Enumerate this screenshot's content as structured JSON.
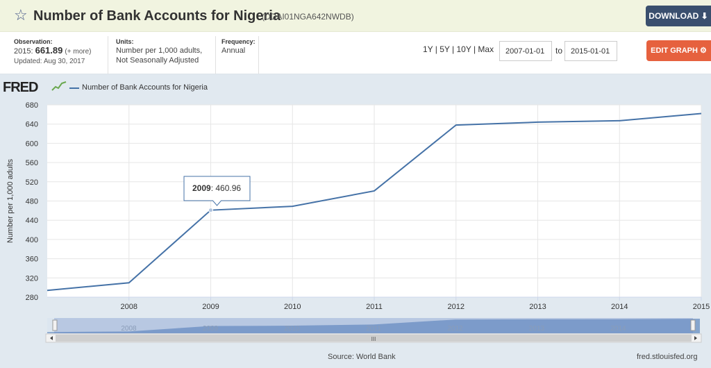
{
  "header": {
    "title": "Number of Bank Accounts for Nigeria",
    "series_id": "(DDAI01NGA642NWDB)",
    "download_label": "DOWNLOAD",
    "star_icon": "star-outline-icon"
  },
  "info": {
    "observation_label": "Observation:",
    "observation_year": "2015:",
    "observation_value": "661.89",
    "observation_more": "(+ more)",
    "updated": "Updated: Aug 30, 2017",
    "units_label": "Units:",
    "units_line1": "Number per 1,000 adults,",
    "units_line2": "Not Seasonally Adjusted",
    "frequency_label": "Frequency:",
    "frequency_value": "Annual"
  },
  "controls": {
    "range_links": "1Y | 5Y | 10Y | Max",
    "start_date": "2007-01-01",
    "to_label": "to",
    "end_date": "2015-01-01",
    "edit_label": "EDIT GRAPH"
  },
  "legend": {
    "logo": "FRED",
    "series_name": "Number of Bank Accounts for Nigeria"
  },
  "tooltip": {
    "year": "2009",
    "value": ": 460.96"
  },
  "footer": {
    "source": "Source: World Bank",
    "url": "fred.stlouisfed.org"
  },
  "chart_data": {
    "type": "line",
    "ylabel": "Number per 1,000 adults",
    "xlabel": "",
    "x": [
      2007,
      2008,
      2009,
      2010,
      2011,
      2012,
      2013,
      2014,
      2015
    ],
    "series": [
      {
        "name": "Number of Bank Accounts for Nigeria",
        "values": [
          294,
          310,
          460.96,
          469,
          501,
          638,
          644,
          647,
          661.89
        ],
        "color": "#4572a7"
      }
    ],
    "ylim": [
      280,
      680
    ],
    "yticks": [
      280,
      320,
      360,
      400,
      440,
      480,
      520,
      560,
      600,
      640,
      680
    ],
    "xticks": [
      2008,
      2009,
      2010,
      2011,
      2012,
      2013,
      2014,
      2015
    ],
    "xlim": [
      2007,
      2015
    ],
    "grid": true,
    "navigator_labels": [
      "2008",
      "2009",
      "2010",
      "2011",
      "2012",
      "2013",
      "2014"
    ],
    "scrollbar_grip": "III"
  }
}
